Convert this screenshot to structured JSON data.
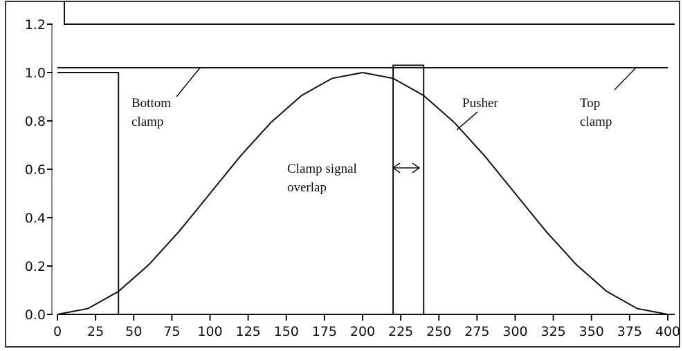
{
  "chart_data": {
    "type": "line",
    "xlim": [
      0,
      400
    ],
    "xticks": [
      0,
      25,
      50,
      75,
      100,
      125,
      150,
      175,
      200,
      225,
      250,
      275,
      300,
      325,
      350,
      375,
      400
    ],
    "ylim": [
      0,
      1.2
    ],
    "yticks": [
      {
        "value": 0,
        "label": "0.0"
      },
      0.2,
      0.4,
      0.6,
      0.8,
      {
        "value": 1,
        "label": "1.0"
      },
      1.2
    ],
    "color": "#111111",
    "series": [
      {
        "x": [
          0,
          40,
          40,
          220,
          220,
          240,
          240,
          400
        ],
        "values": [
          1,
          1,
          0,
          0,
          1.03,
          1.03,
          0,
          0
        ]
      },
      {
        "x": [
          0,
          400
        ],
        "values": [
          1.02,
          1.02
        ]
      },
      {
        "x": [
          0,
          20,
          40,
          60,
          80,
          100,
          120,
          140,
          160,
          180,
          200,
          220,
          240,
          260,
          280,
          300,
          320,
          340,
          360,
          380,
          400
        ],
        "values": [
          0,
          0.024,
          0.095,
          0.206,
          0.345,
          0.5,
          0.655,
          0.794,
          0.905,
          0.976,
          1,
          0.976,
          0.905,
          0.794,
          0.655,
          0.5,
          0.345,
          0.206,
          0.095,
          0.024,
          0
        ]
      }
    ],
    "annotations": [
      {
        "lines": [
          "Bottom",
          "clamp"
        ]
      },
      {
        "lines": [
          "Pusher"
        ]
      },
      {
        "lines": [
          "Top",
          "clamp"
        ]
      },
      {
        "lines": [
          "Clamp signal",
          "overlap"
        ]
      }
    ]
  }
}
